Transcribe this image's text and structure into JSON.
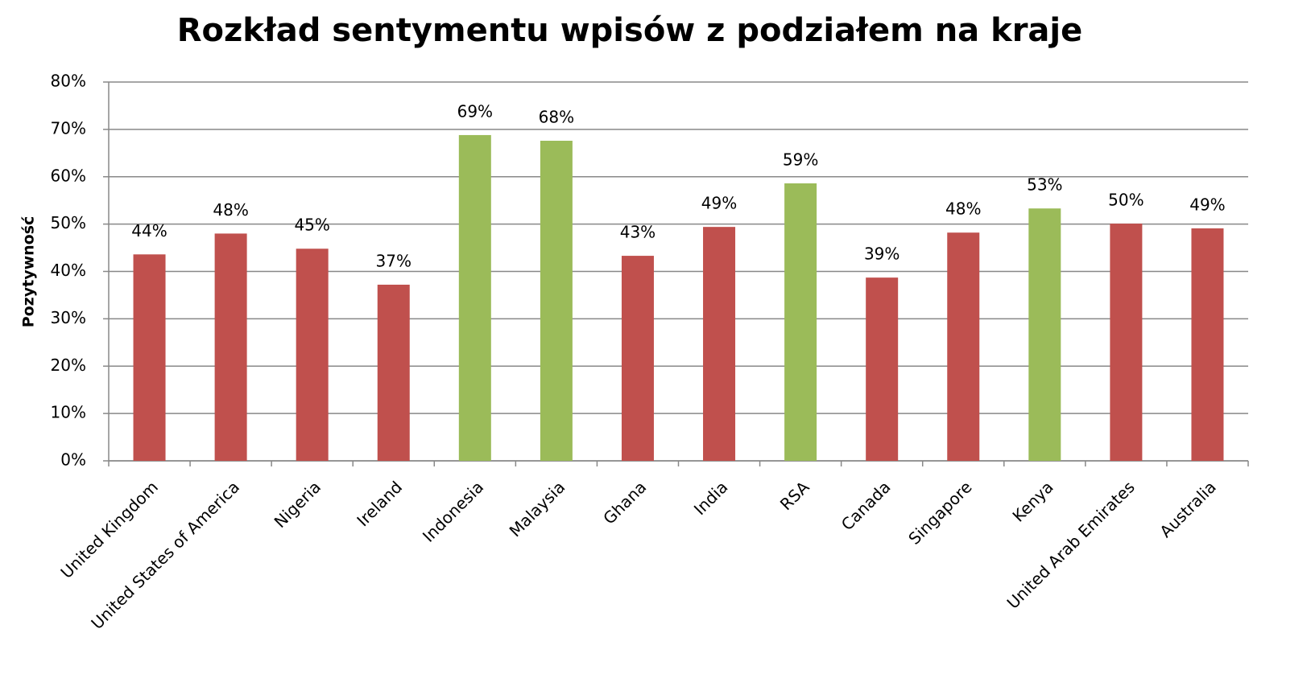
{
  "chart_data": {
    "type": "bar",
    "title": "Rozkład sentymentu wpisów z podziałem na kraje",
    "y_label": "Pozytywność",
    "categories": [
      "United Kingdom",
      "United States of America",
      "Nigeria",
      "Ireland",
      "Indonesia",
      "Malaysia",
      "Ghana",
      "India",
      "RSA",
      "Canada",
      "Singapore",
      "Kenya",
      "United Arab Emirates",
      "Australia"
    ],
    "values": [
      43.6,
      48.0,
      44.8,
      37.2,
      68.8,
      67.6,
      43.3,
      49.4,
      58.6,
      38.7,
      48.2,
      53.3,
      50.1,
      49.1
    ],
    "value_labels": [
      "44%",
      "48%",
      "45%",
      "37%",
      "69%",
      "68%",
      "43%",
      "49%",
      "59%",
      "39%",
      "48%",
      "53%",
      "50%",
      "49%"
    ],
    "colors": [
      "#c0504d",
      "#c0504d",
      "#c0504d",
      "#c0504d",
      "#9bbb59",
      "#9bbb59",
      "#c0504d",
      "#c0504d",
      "#9bbb59",
      "#c0504d",
      "#c0504d",
      "#9bbb59",
      "#c0504d",
      "#c0504d"
    ],
    "ylim": [
      0,
      80
    ],
    "yticks": [
      {
        "value": 0,
        "label": "0%"
      },
      {
        "value": 10,
        "label": "10%"
      },
      {
        "value": 20,
        "label": "20%"
      },
      {
        "value": 30,
        "label": "30%"
      },
      {
        "value": 40,
        "label": "40%"
      },
      {
        "value": 50,
        "label": "50%"
      },
      {
        "value": 60,
        "label": "60%"
      },
      {
        "value": 70,
        "label": "70%"
      },
      {
        "value": 80,
        "label": "80%"
      }
    ],
    "grid": true
  }
}
